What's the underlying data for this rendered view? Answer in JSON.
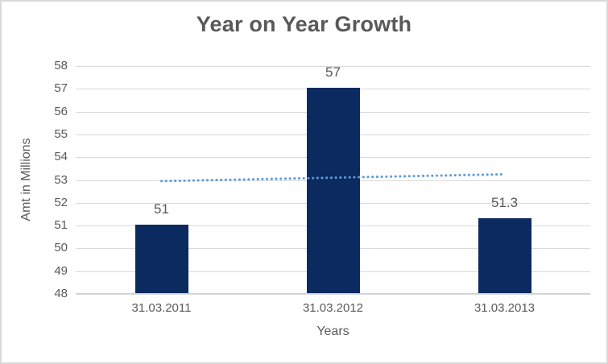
{
  "chart_data": {
    "type": "bar",
    "title": "Year on Year Growth",
    "xlabel": "Years",
    "ylabel": "Amt in Millions",
    "categories": [
      "31.03.2011",
      "31.03.2012",
      "31.03.2013"
    ],
    "values": [
      51,
      57,
      51.3
    ],
    "data_labels": [
      "51",
      "57",
      "51.3"
    ],
    "ylim": [
      48,
      58
    ],
    "yticks": [
      58,
      57,
      56,
      55,
      54,
      53,
      52,
      51,
      50,
      49,
      48
    ],
    "grid": true,
    "legend": "none",
    "trendline": {
      "type": "linear",
      "style": "dotted",
      "start_value": 52.95,
      "end_value": 53.25
    },
    "colors": {
      "bar": "#0B2A60",
      "trendline": "#5B9BD5",
      "gridline": "#D9D9D9",
      "axis_line": "#D0D0D0",
      "text": "#595959",
      "border": "#D9D9D9",
      "background": "#FFFFFF"
    }
  }
}
